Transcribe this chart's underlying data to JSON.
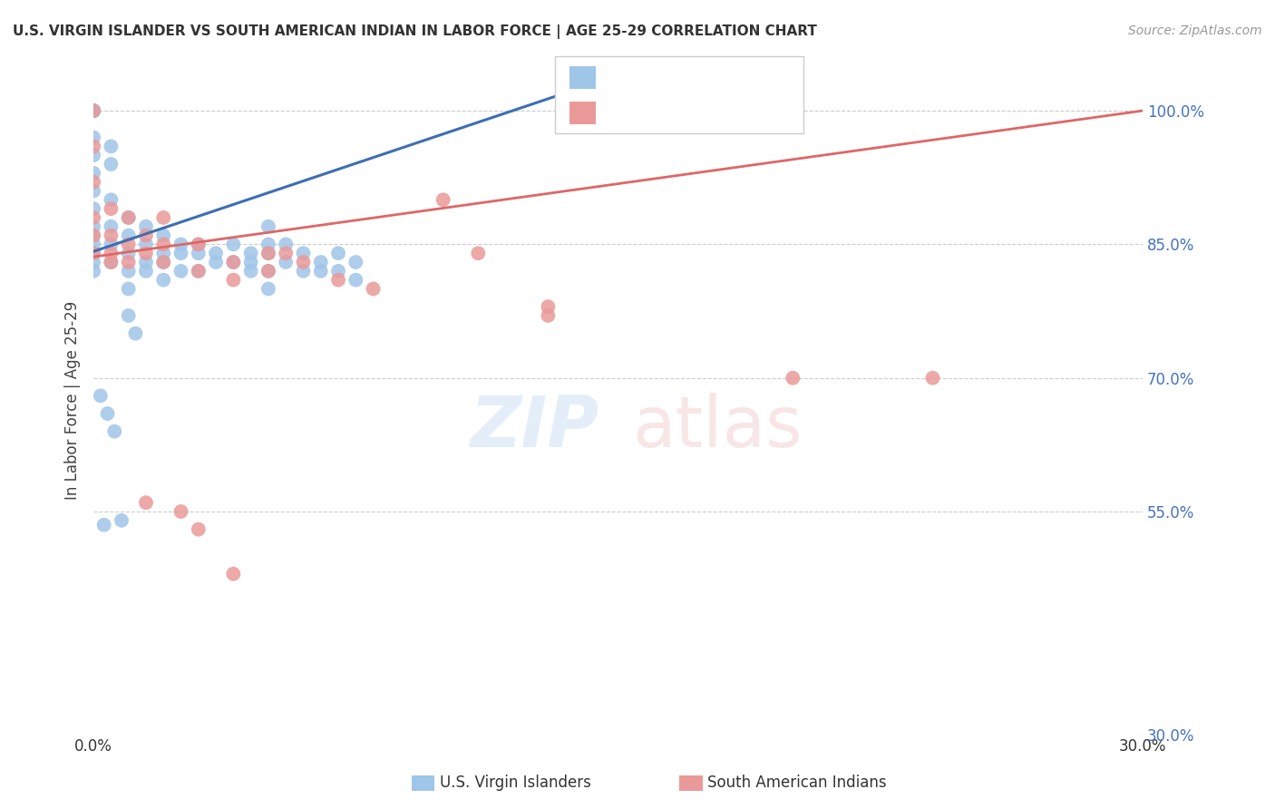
{
  "title": "U.S. VIRGIN ISLANDER VS SOUTH AMERICAN INDIAN IN LABOR FORCE | AGE 25-29 CORRELATION CHART",
  "source": "Source: ZipAtlas.com",
  "ylabel": "In Labor Force | Age 25-29",
  "xlim": [
    0.0,
    0.3
  ],
  "ylim": [
    0.3,
    1.05
  ],
  "xtick_positions": [
    0.0,
    0.05,
    0.1,
    0.15,
    0.2,
    0.25,
    0.3
  ],
  "xticklabels": [
    "0.0%",
    "",
    "",
    "",
    "",
    "",
    "30.0%"
  ],
  "ytick_positions": [
    0.3,
    0.55,
    0.7,
    0.85,
    1.0
  ],
  "yticklabels": [
    "30.0%",
    "55.0%",
    "70.0%",
    "85.0%",
    "100.0%"
  ],
  "blue_color": "#9fc5e8",
  "pink_color": "#ea9999",
  "blue_line_color": "#3d6eb5",
  "pink_line_color": "#e06666",
  "legend_label_blue": "U.S. Virgin Islanders",
  "legend_label_pink": "South American Indians",
  "blue_x": [
    0.0,
    0.0,
    0.0,
    0.0,
    0.0,
    0.0,
    0.0,
    0.0,
    0.0,
    0.0,
    0.0,
    0.0,
    0.0,
    0.0,
    0.0,
    0.0,
    0.0,
    0.0,
    0.005,
    0.005,
    0.005,
    0.005,
    0.005,
    0.005,
    0.01,
    0.01,
    0.01,
    0.01,
    0.01,
    0.015,
    0.015,
    0.015,
    0.015,
    0.02,
    0.02,
    0.02,
    0.02,
    0.025,
    0.025,
    0.025,
    0.03,
    0.03,
    0.03,
    0.035,
    0.035,
    0.04,
    0.04,
    0.045,
    0.045,
    0.045,
    0.05,
    0.05,
    0.05,
    0.05,
    0.05,
    0.055,
    0.055,
    0.06,
    0.06,
    0.065,
    0.065,
    0.07,
    0.07,
    0.075,
    0.075,
    0.008,
    0.003,
    0.01,
    0.012,
    0.002,
    0.004,
    0.006
  ],
  "blue_y": [
    1.0,
    1.0,
    1.0,
    1.0,
    1.0,
    1.0,
    1.0,
    0.97,
    0.95,
    0.93,
    0.91,
    0.89,
    0.87,
    0.86,
    0.85,
    0.84,
    0.83,
    0.82,
    0.96,
    0.94,
    0.9,
    0.87,
    0.85,
    0.83,
    0.88,
    0.86,
    0.84,
    0.82,
    0.8,
    0.87,
    0.85,
    0.83,
    0.82,
    0.86,
    0.84,
    0.83,
    0.81,
    0.85,
    0.84,
    0.82,
    0.85,
    0.84,
    0.82,
    0.84,
    0.83,
    0.85,
    0.83,
    0.84,
    0.83,
    0.82,
    0.87,
    0.85,
    0.84,
    0.82,
    0.8,
    0.85,
    0.83,
    0.84,
    0.82,
    0.83,
    0.82,
    0.84,
    0.82,
    0.83,
    0.81,
    0.54,
    0.535,
    0.77,
    0.75,
    0.68,
    0.66,
    0.64
  ],
  "pink_x": [
    0.0,
    0.0,
    0.0,
    0.0,
    0.0,
    0.0,
    0.005,
    0.005,
    0.005,
    0.005,
    0.01,
    0.01,
    0.01,
    0.015,
    0.015,
    0.02,
    0.02,
    0.02,
    0.03,
    0.03,
    0.04,
    0.04,
    0.05,
    0.05,
    0.055,
    0.06,
    0.07,
    0.08,
    0.1,
    0.11,
    0.13,
    0.13,
    0.2,
    0.24,
    0.04,
    0.015,
    0.025,
    0.03
  ],
  "pink_y": [
    1.0,
    0.96,
    0.92,
    0.88,
    0.86,
    0.84,
    0.89,
    0.86,
    0.84,
    0.83,
    0.88,
    0.85,
    0.83,
    0.86,
    0.84,
    0.88,
    0.85,
    0.83,
    0.85,
    0.82,
    0.83,
    0.81,
    0.84,
    0.82,
    0.84,
    0.83,
    0.81,
    0.8,
    0.9,
    0.84,
    0.78,
    0.77,
    0.7,
    0.7,
    0.48,
    0.56,
    0.55,
    0.53
  ],
  "blue_trend_x": [
    0.0,
    0.135
  ],
  "blue_trend_y": [
    0.842,
    1.02
  ],
  "pink_trend_x": [
    0.0,
    0.3
  ],
  "pink_trend_y": [
    0.836,
    1.0
  ]
}
